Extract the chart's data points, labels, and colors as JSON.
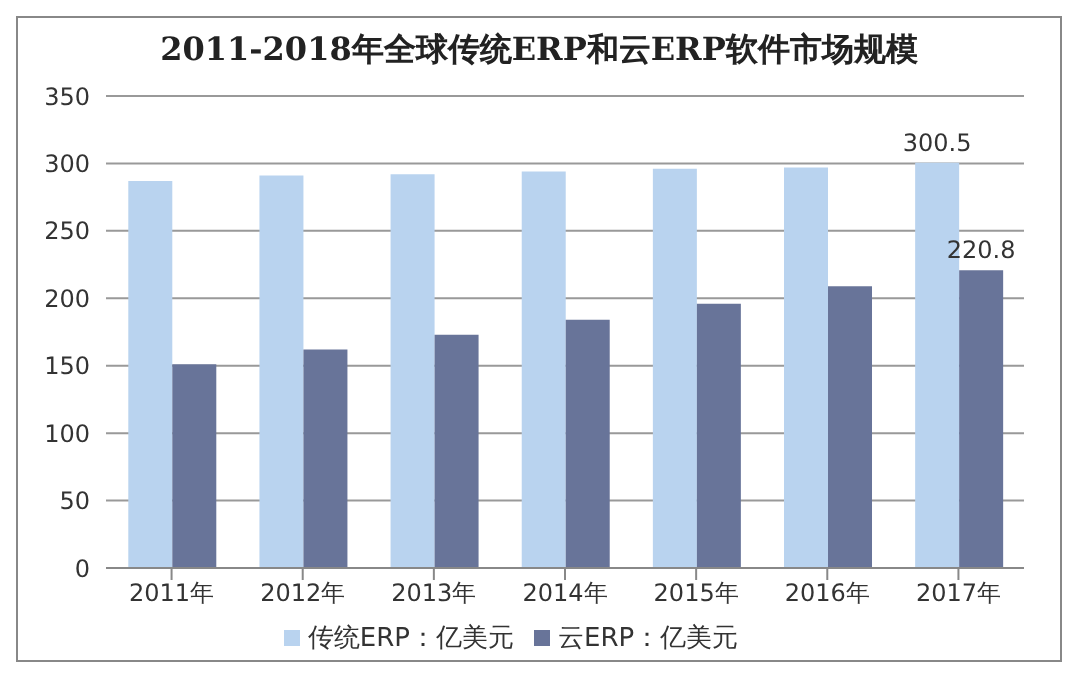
{
  "chart_data": {
    "type": "bar",
    "title": "2011-2018年全球传统ERP和云ERP软件市场规模",
    "categories": [
      "2011年",
      "2012年",
      "2013年",
      "2014年",
      "2015年",
      "2016年",
      "2017年"
    ],
    "series": [
      {
        "name": "传统ERP：亿美元",
        "color": "#b9d3ef",
        "values": [
          287,
          291,
          292,
          294,
          296,
          297,
          300.5
        ],
        "value_labels": [
          null,
          null,
          null,
          null,
          null,
          null,
          "300.5"
        ]
      },
      {
        "name": "云ERP：亿美元",
        "color": "#687499",
        "values": [
          151,
          162,
          173,
          184,
          196,
          209,
          220.8
        ],
        "value_labels": [
          null,
          null,
          null,
          null,
          null,
          null,
          "220.8"
        ]
      }
    ],
    "ylim": [
      0,
      350
    ],
    "yticks": [
      0,
      50,
      100,
      150,
      200,
      250,
      300,
      350
    ],
    "grid": "y",
    "legend": "bottom"
  }
}
